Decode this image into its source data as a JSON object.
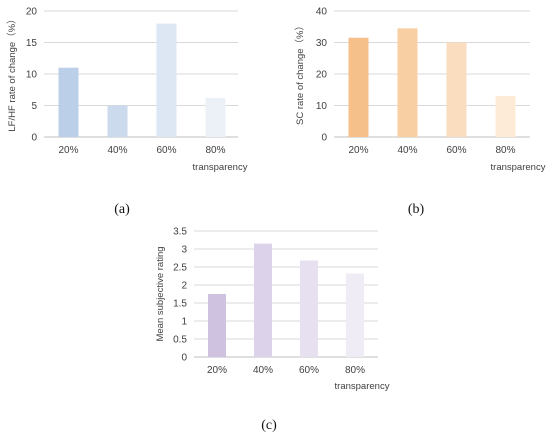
{
  "chart_data": [
    {
      "type": "bar",
      "panel_label": "(a)",
      "categories": [
        "20%",
        "40%",
        "60%",
        "80%"
      ],
      "values": [
        11,
        5,
        18,
        6.2
      ],
      "xlabel": "transparency",
      "ylabel": "LF/HF rate of change（%）",
      "ylim": [
        0,
        20
      ],
      "yticks": [
        "0",
        "5",
        "10",
        "15",
        "20"
      ],
      "grid": true,
      "colors": [
        "#bccfe9",
        "#ccdaee",
        "#dde7f4",
        "#ecf1f8"
      ]
    },
    {
      "type": "bar",
      "panel_label": "(b)",
      "categories": [
        "20%",
        "40%",
        "60%",
        "80%"
      ],
      "values": [
        31.5,
        34.5,
        30,
        13
      ],
      "xlabel": "transparency",
      "ylabel": "SC rate of change（%）",
      "ylim": [
        0,
        40
      ],
      "yticks": [
        "0",
        "10",
        "20",
        "30",
        "40"
      ],
      "grid": true,
      "colors": [
        "#f5c08a",
        "#f8cfa3",
        "#fadcbe",
        "#fdebd8"
      ]
    },
    {
      "type": "bar",
      "panel_label": "(c)",
      "categories": [
        "20%",
        "40%",
        "60%",
        "80%"
      ],
      "values": [
        1.75,
        3.15,
        2.68,
        2.32
      ],
      "xlabel": "transparency",
      "ylabel": "Mean subjective rating",
      "ylim": [
        0,
        3.5
      ],
      "yticks": [
        "0",
        "0.5",
        "1",
        "1.5",
        "2",
        "2.5",
        "3",
        "3.5"
      ],
      "grid": true,
      "colors": [
        "#cfc2e0",
        "#dcd3ea",
        "#e6e0f0",
        "#efecf5"
      ]
    }
  ]
}
